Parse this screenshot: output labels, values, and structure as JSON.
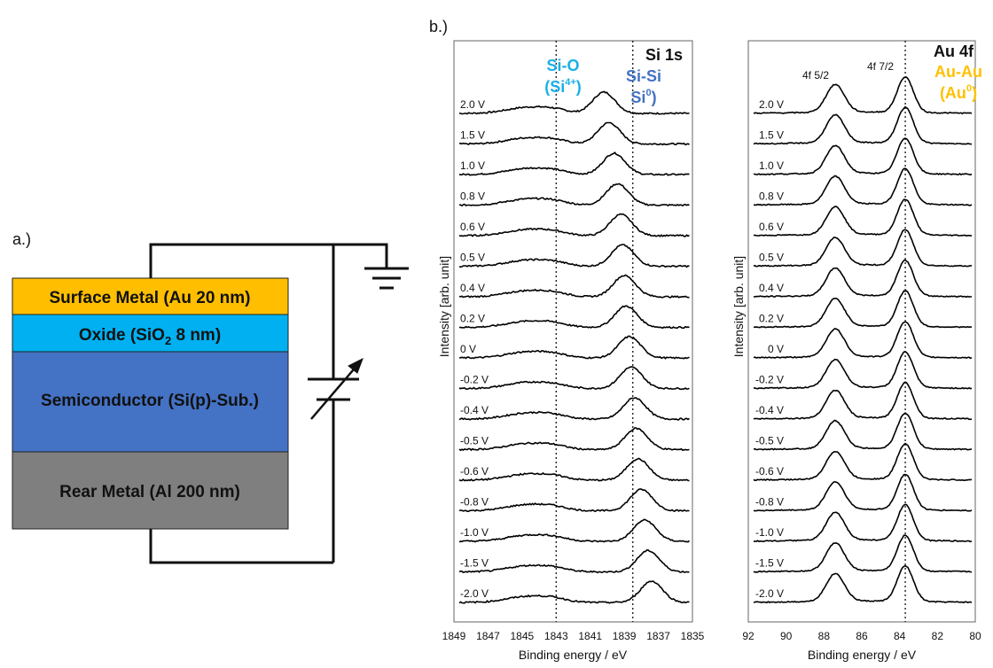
{
  "colors": {
    "au_layer": "#FFBF00",
    "oxide_layer": "#00B0F0",
    "semiconductor_layer": "#4472C4",
    "rear_layer": "#7F7F7F",
    "si_o_label": "#1AAFE6",
    "si_si_label": "#4472C4",
    "au_au_label": "#FFC000",
    "trace": "#000000"
  },
  "panel_a": {
    "label": "a.)",
    "layers": {
      "surface": {
        "name": "Surface Metal (Au 20 nm)"
      },
      "oxide": {
        "prefix": "Oxide (SiO",
        "sub": "2",
        "suffix": " 8 nm)"
      },
      "semiconductor": {
        "name": "Semiconductor (Si(p)-Sub.)"
      },
      "rear": {
        "name": "Rear Metal (Al 200 nm)"
      }
    },
    "icons": [
      "ground-icon",
      "variable-voltage-source-icon"
    ]
  },
  "panel_b": {
    "label": "b.)",
    "ylabel": "Intensity  [arb. unit]",
    "xlabel": "Binding energy / eV",
    "voltages": [
      "2.0 V",
      "1.5 V",
      "1.0 V",
      "0.8 V",
      "0.6 V",
      "0.5 V",
      "0.4 V",
      "0.2 V",
      "0 V",
      "-0.2 V",
      "-0.4 V",
      "-0.5 V",
      "-0.6 V",
      "-0.8 V",
      "-1.0 V",
      "-1.5 V",
      "-2.0 V"
    ]
  },
  "chart_data": [
    {
      "type": "line",
      "title": "Si 1s",
      "xlabel": "Binding energy / eV",
      "ylabel": "Intensity  [arb. unit]",
      "xlim": [
        1849,
        1835
      ],
      "xticks": [
        "1849",
        "1847",
        "1845",
        "1843",
        "1841",
        "1839",
        "1837",
        "1835"
      ],
      "reference_lines": [
        1843.0,
        1838.5
      ],
      "annotations": {
        "si_o": {
          "line1": "Si-O",
          "l2_prefix": "(Si",
          "l2_sup": "4+",
          "l2_suffix": ")"
        },
        "si_si": {
          "line1": "Si-Si",
          "l2_prefix": "Si",
          "l2_sup": "0",
          "l2_suffix": ")"
        }
      },
      "series": [
        {
          "name": "2.0 V",
          "peak_x": 1840.2
        },
        {
          "name": "1.5 V",
          "peak_x": 1839.9
        },
        {
          "name": "1.0 V",
          "peak_x": 1839.6
        },
        {
          "name": "0.8 V",
          "peak_x": 1839.4
        },
        {
          "name": "0.6 V",
          "peak_x": 1839.2
        },
        {
          "name": "0.5 V",
          "peak_x": 1839.1
        },
        {
          "name": "0.4 V",
          "peak_x": 1839.0
        },
        {
          "name": "0.2 V",
          "peak_x": 1838.9
        },
        {
          "name": "0 V",
          "peak_x": 1838.7
        },
        {
          "name": "-0.2 V",
          "peak_x": 1838.6
        },
        {
          "name": "-0.4 V",
          "peak_x": 1838.4
        },
        {
          "name": "-0.5 V",
          "peak_x": 1838.3
        },
        {
          "name": "-0.6 V",
          "peak_x": 1838.2
        },
        {
          "name": "-0.8 V",
          "peak_x": 1838.0
        },
        {
          "name": "-1.0 V",
          "peak_x": 1837.8
        },
        {
          "name": "-1.5 V",
          "peak_x": 1837.6
        },
        {
          "name": "-2.0 V",
          "peak_x": 1837.4
        }
      ]
    },
    {
      "type": "line",
      "title": "Au 4f",
      "xlabel": "Binding energy / eV",
      "ylabel": "Intensity  [arb. unit]",
      "xlim": [
        92,
        80
      ],
      "xticks": [
        "92",
        "90",
        "88",
        "86",
        "84",
        "82",
        "80"
      ],
      "reference_lines": [
        83.7
      ],
      "peaks": [
        {
          "label": "4f 5/2",
          "x": 87.4
        },
        {
          "label": "4f 7/2",
          "x": 83.7
        }
      ],
      "annotations": {
        "au_au": {
          "line1": "Au-Au",
          "l2_prefix": "(Au",
          "l2_sup": "0",
          "l2_suffix": ")"
        }
      },
      "series": [
        {
          "name": "2.0 V"
        },
        {
          "name": "1.5 V"
        },
        {
          "name": "1.0 V"
        },
        {
          "name": "0.8 V"
        },
        {
          "name": "0.6 V"
        },
        {
          "name": "0.5 V"
        },
        {
          "name": "0.4 V"
        },
        {
          "name": "0.2 V"
        },
        {
          "name": "0 V"
        },
        {
          "name": "-0.2 V"
        },
        {
          "name": "-0.4 V"
        },
        {
          "name": "-0.5 V"
        },
        {
          "name": "-0.6 V"
        },
        {
          "name": "-0.8 V"
        },
        {
          "name": "-1.0 V"
        },
        {
          "name": "-1.5 V"
        },
        {
          "name": "-2.0 V"
        }
      ]
    }
  ]
}
